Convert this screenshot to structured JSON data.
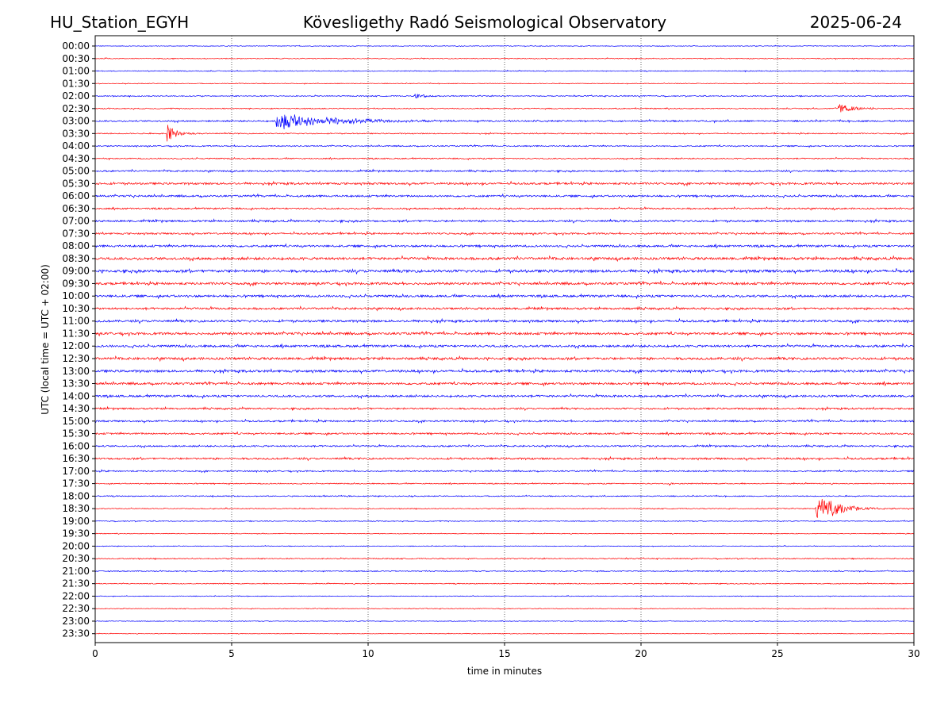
{
  "chart_data": {
    "type": "line",
    "title_left": "HU_Station_EGYH",
    "title_center": "Kövesligethy Radó Seismological Observatory",
    "title_right": "2025-06-24",
    "xlabel": "time in minutes",
    "ylabel": "UTC (local time = UTC + 02:00)",
    "xlim": [
      0,
      30
    ],
    "x_ticks": [
      "0",
      "5",
      "10",
      "15",
      "20",
      "25",
      "30"
    ],
    "x_tick_values": [
      0,
      5,
      10,
      15,
      20,
      25,
      30
    ],
    "vertical_gridlines_at": [
      5,
      10,
      15,
      20,
      25
    ],
    "grid": "vertical dotted",
    "row_labels": [
      "00:00",
      "00:30",
      "01:00",
      "01:30",
      "02:00",
      "02:30",
      "03:00",
      "03:30",
      "04:00",
      "04:30",
      "05:00",
      "05:30",
      "06:00",
      "06:30",
      "07:00",
      "07:30",
      "08:00",
      "08:30",
      "09:00",
      "09:30",
      "10:00",
      "10:30",
      "11:00",
      "11:30",
      "12:00",
      "12:30",
      "13:00",
      "13:30",
      "14:00",
      "14:30",
      "15:00",
      "15:30",
      "16:00",
      "16:30",
      "17:00",
      "17:30",
      "18:00",
      "18:30",
      "19:00",
      "19:30",
      "20:00",
      "20:30",
      "21:00",
      "21:30",
      "22:00",
      "22:30",
      "23:00",
      "23:30"
    ],
    "trace_colors": [
      "#0000ff",
      "#ff0000"
    ],
    "noise_levels": [
      0.4,
      0.5,
      0.5,
      0.4,
      0.6,
      0.6,
      0.9,
      0.6,
      0.7,
      0.7,
      0.9,
      1.2,
      1.1,
      0.9,
      1.1,
      1.0,
      1.2,
      1.5,
      1.6,
      1.4,
      1.3,
      1.2,
      1.3,
      1.4,
      1.3,
      1.4,
      1.4,
      1.3,
      1.2,
      1.0,
      1.0,
      1.0,
      0.9,
      1.1,
      0.8,
      0.6,
      0.6,
      0.5,
      0.5,
      0.4,
      0.4,
      0.6,
      0.6,
      0.5,
      0.4,
      0.4,
      0.4,
      0.3
    ],
    "events": [
      {
        "row": "02:00",
        "start_min": 11.7,
        "peak_amplitude": 4,
        "duration_min": 1.2
      },
      {
        "row": "02:30",
        "start_min": 27.2,
        "peak_amplitude": 6,
        "duration_min": 1.6
      },
      {
        "row": "03:00",
        "start_min": 6.6,
        "peak_amplitude": 11,
        "duration_min": 6.0
      },
      {
        "row": "03:30",
        "start_min": 2.6,
        "peak_amplitude": 13,
        "duration_min": 1.0
      },
      {
        "row": "18:30",
        "start_min": 26.4,
        "peak_amplitude": 22,
        "duration_min": 2.0
      },
      {
        "row": "17:30",
        "start_min": 21.0,
        "peak_amplitude": 4,
        "duration_min": 0.2
      }
    ]
  }
}
